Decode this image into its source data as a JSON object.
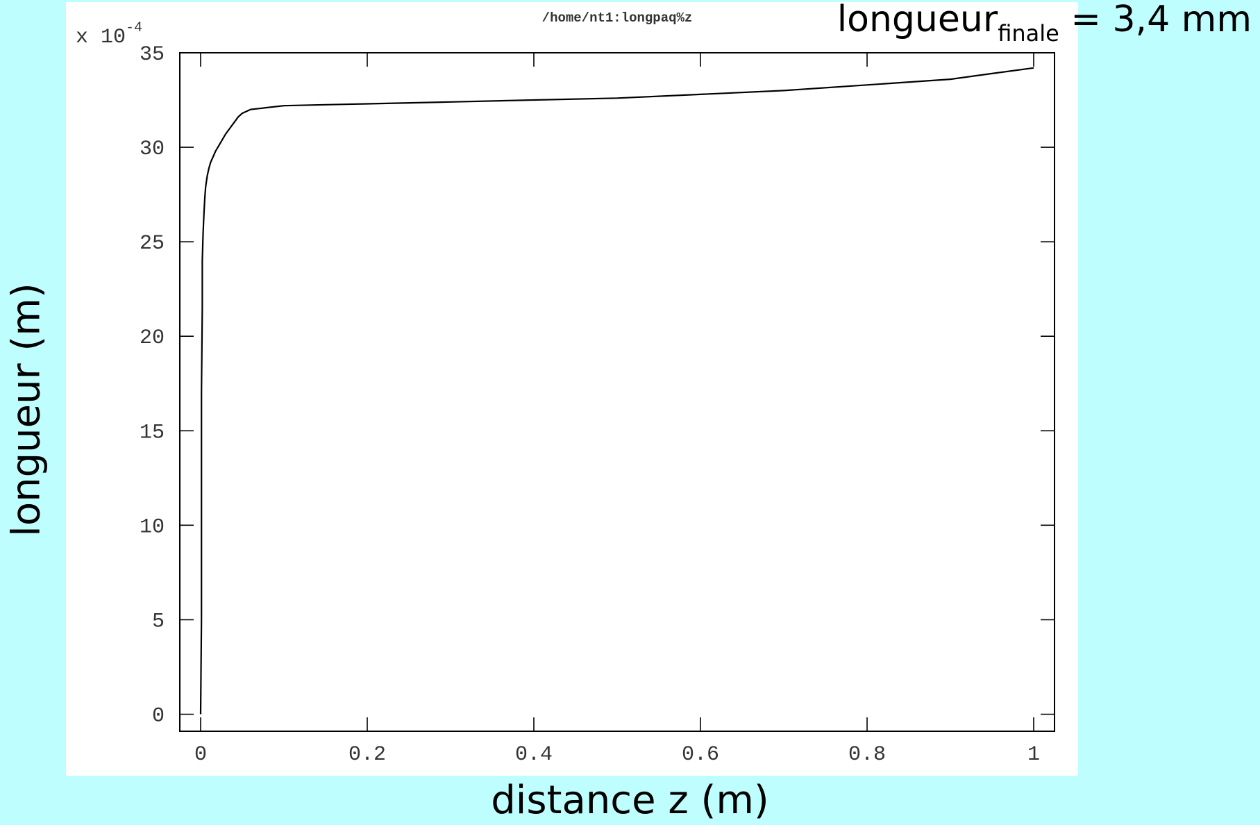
{
  "chart_data": {
    "type": "line",
    "title": "/home/nt1:longpaq%z",
    "annotation": {
      "main": "longueur",
      "subscript": "finale",
      "rest": " = 3,4 mm"
    },
    "xlabel": "distance z (m)",
    "ylabel": "longueur (m)",
    "y_multiplier": {
      "base": "x 10",
      "exponent": "-4"
    },
    "xlim": [
      -0.025,
      1.025
    ],
    "ylim": [
      -0.9,
      35
    ],
    "x_ticks": [
      0,
      0.2,
      0.4,
      0.6,
      0.8,
      1
    ],
    "x_tick_labels": [
      "0",
      "0.2",
      "0.4",
      "0.6",
      "0.8",
      "1"
    ],
    "y_ticks": [
      0,
      5,
      10,
      15,
      20,
      25,
      30,
      35
    ],
    "y_tick_labels": [
      "0",
      "5",
      "10",
      "15",
      "20",
      "25",
      "30",
      "35"
    ],
    "grid": false,
    "line_color": "#000000",
    "series": [
      {
        "x": [
          0,
          0.001,
          0.001,
          0.002,
          0.002,
          0.003,
          0.004,
          0.005,
          0.006,
          0.008,
          0.01,
          0.012,
          0.015,
          0.018,
          0.022,
          0.026,
          0.03,
          0.035,
          0.04,
          0.045,
          0.05,
          0.055,
          0.06,
          0.07,
          0.08,
          0.1,
          0.15,
          0.2,
          0.3,
          0.4,
          0.5,
          0.6,
          0.7,
          0.8,
          0.9,
          0.95,
          1
        ],
        "y": [
          0,
          5,
          17,
          21.5,
          24,
          25.5,
          26.5,
          27.3,
          27.9,
          28.5,
          28.9,
          29.2,
          29.5,
          29.8,
          30.1,
          30.4,
          30.7,
          31.0,
          31.3,
          31.6,
          31.8,
          31.9,
          32.0,
          32.05,
          32.1,
          32.2,
          32.25,
          32.3,
          32.4,
          32.5,
          32.6,
          32.8,
          33.0,
          33.3,
          33.6,
          33.9,
          34.2
        ]
      }
    ]
  }
}
